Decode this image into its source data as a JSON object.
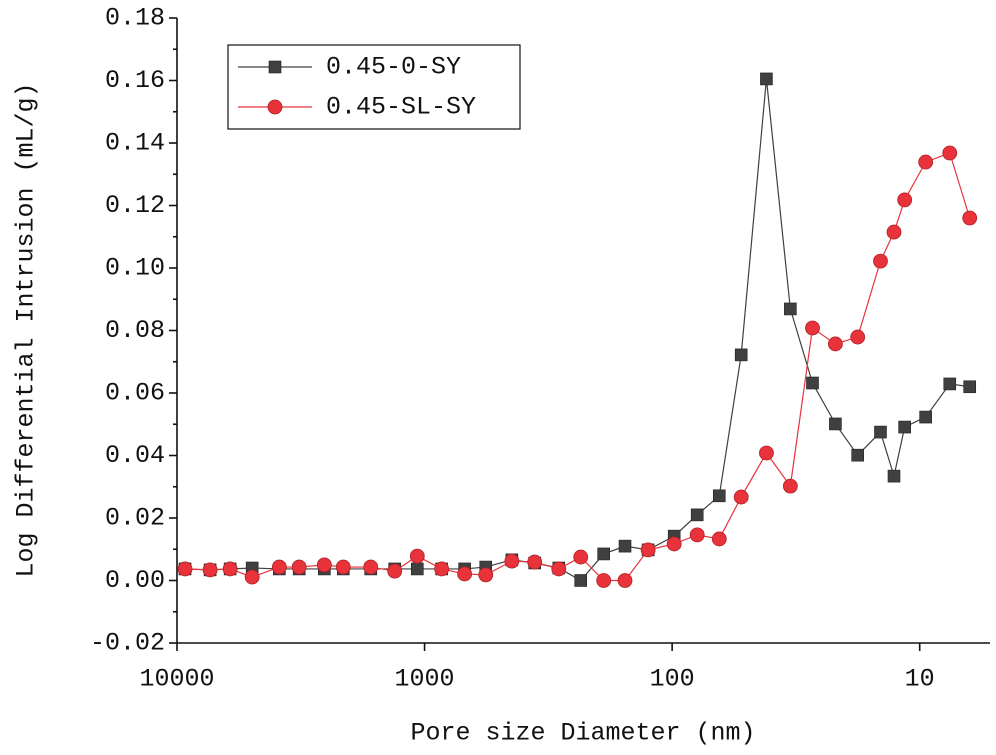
{
  "chart_data": {
    "type": "line",
    "xlabel": "Pore size Diameter (nm)",
    "ylabel": "Log Differential Intrusion (mL/g)",
    "xscale": "log",
    "xlim": [
      10000,
      5.2
    ],
    "xticks": [
      10000,
      1000,
      100,
      10
    ],
    "ylim": [
      -0.02,
      0.18
    ],
    "yticks": [
      -0.02,
      {
        "value": 0,
        "label": "0.00"
      },
      0.02,
      0.04,
      0.06,
      0.08,
      {
        "value": 0.1,
        "label": "0.10"
      },
      0.12,
      0.14,
      0.16,
      0.18
    ],
    "legend": "upper left",
    "x": [
      9280,
      7350,
      6100,
      4970,
      3860,
      3210,
      2540,
      2130,
      1650,
      1320,
      1070,
      853,
      689,
      566,
      444,
      359,
      287,
      234,
      189,
      155,
      125,
      98.1,
      79.2,
      64.5,
      52.6,
      41.6,
      33.3,
      27.1,
      21.9,
      17.8,
      14.4,
      12.7,
      11.5,
      9.46,
      7.56,
      6.28
    ],
    "series": [
      {
        "name": "0.45-0-SY",
        "color": "#404040",
        "marker": "square",
        "values": [
          0.0037,
          0.0034,
          0.0037,
          0.004,
          0.0037,
          0.0037,
          0.0037,
          0.0037,
          0.0037,
          0.0037,
          0.0037,
          0.0037,
          0.0037,
          0.0043,
          0.0066,
          0.0056,
          0.004,
          0.0,
          0.0085,
          0.011,
          0.0098,
          0.0142,
          0.021,
          0.0271,
          0.0722,
          0.1605,
          0.0869,
          0.0632,
          0.0501,
          0.0401,
          0.0475,
          0.0334,
          0.0491,
          0.0523,
          0.0629,
          0.062
        ]
      },
      {
        "name": "0.45-SL-SY",
        "color": "#e8333a",
        "marker": "circle",
        "values": [
          0.0037,
          0.0034,
          0.0037,
          0.0011,
          0.0043,
          0.0043,
          0.005,
          0.0043,
          0.0043,
          0.003,
          0.0078,
          0.0037,
          0.0021,
          0.0018,
          0.0062,
          0.0059,
          0.0037,
          0.0075,
          0.0,
          0.0,
          0.0098,
          0.0117,
          0.0146,
          0.0133,
          0.0267,
          0.0408,
          0.0302,
          0.0808,
          0.0757,
          0.0779,
          0.1022,
          0.1115,
          0.1218,
          0.1339,
          0.1368,
          0.116
        ]
      }
    ]
  }
}
